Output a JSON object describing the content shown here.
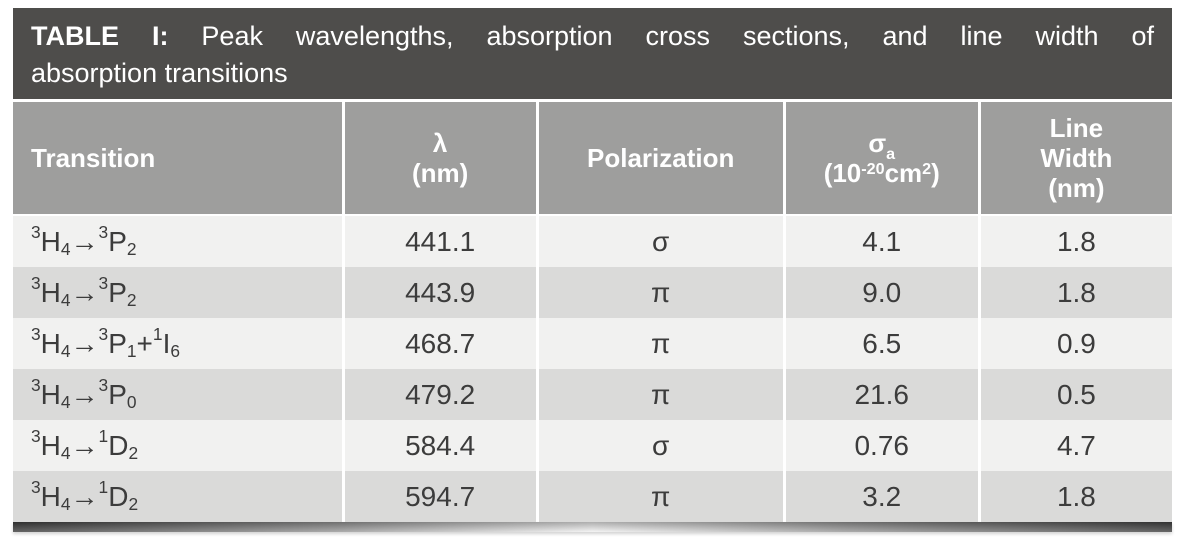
{
  "title": {
    "label": "TABLE I:",
    "rest": "Peak wavelengths, absorption cross sections, and line width of",
    "line2": "absorption transitions"
  },
  "header": {
    "columns": [
      {
        "name": "transition",
        "align": "left",
        "lines": [
          [
            [
              "t",
              "Transition"
            ]
          ]
        ]
      },
      {
        "name": "lambda-nm",
        "align": "center",
        "lines": [
          [
            [
              "t",
              "λ"
            ]
          ],
          [
            [
              "t",
              "(nm)"
            ]
          ]
        ]
      },
      {
        "name": "polarization",
        "align": "center",
        "lines": [
          [
            [
              "t",
              "Polarization"
            ]
          ]
        ]
      },
      {
        "name": "sigma-a",
        "align": "center",
        "lines": [
          [
            [
              "t",
              "σ"
            ],
            [
              "sub",
              "a"
            ]
          ],
          [
            [
              "t",
              "(10"
            ],
            [
              "sup",
              "-20"
            ],
            [
              "t",
              "cm"
            ],
            [
              "sup",
              "2"
            ],
            [
              "t",
              ")"
            ]
          ]
        ]
      },
      {
        "name": "line-width",
        "align": "center",
        "lines": [
          [
            [
              "t",
              "Line"
            ]
          ],
          [
            [
              "t",
              "Width"
            ]
          ],
          [
            [
              "t",
              "(nm)"
            ]
          ]
        ]
      }
    ]
  },
  "rows": [
    {
      "transition": [
        [
          "sup",
          "3"
        ],
        [
          "t",
          "H"
        ],
        [
          "sub",
          "4"
        ],
        [
          "t",
          "→"
        ],
        [
          "sup",
          "3"
        ],
        [
          "t",
          "P"
        ],
        [
          "sub",
          "2"
        ]
      ],
      "lambda": "441.1",
      "polarization": "σ",
      "sigma": "4.1",
      "line_width": "1.8"
    },
    {
      "transition": [
        [
          "sup",
          "3"
        ],
        [
          "t",
          "H"
        ],
        [
          "sub",
          "4"
        ],
        [
          "t",
          "→"
        ],
        [
          "sup",
          "3"
        ],
        [
          "t",
          "P"
        ],
        [
          "sub",
          "2"
        ]
      ],
      "lambda": "443.9",
      "polarization": "π",
      "sigma": "9.0",
      "line_width": "1.8"
    },
    {
      "transition": [
        [
          "sup",
          "3"
        ],
        [
          "t",
          "H"
        ],
        [
          "sub",
          "4"
        ],
        [
          "t",
          "→"
        ],
        [
          "sup",
          "3"
        ],
        [
          "t",
          "P"
        ],
        [
          "sub",
          "1"
        ],
        [
          "t",
          "+"
        ],
        [
          "sup",
          "1"
        ],
        [
          "t",
          "I"
        ],
        [
          "sub",
          "6"
        ]
      ],
      "lambda": "468.7",
      "polarization": "π",
      "sigma": "6.5",
      "line_width": "0.9"
    },
    {
      "transition": [
        [
          "sup",
          "3"
        ],
        [
          "t",
          "H"
        ],
        [
          "sub",
          "4"
        ],
        [
          "t",
          "→"
        ],
        [
          "sup",
          "3"
        ],
        [
          "t",
          "P"
        ],
        [
          "sub",
          "0"
        ]
      ],
      "lambda": "479.2",
      "polarization": "π",
      "sigma": "21.6",
      "line_width": "0.5"
    },
    {
      "transition": [
        [
          "sup",
          "3"
        ],
        [
          "t",
          "H"
        ],
        [
          "sub",
          "4"
        ],
        [
          "t",
          "→"
        ],
        [
          "sup",
          "1"
        ],
        [
          "t",
          "D"
        ],
        [
          "sub",
          "2"
        ]
      ],
      "lambda": "584.4",
      "polarization": "σ",
      "sigma": "0.76",
      "line_width": "4.7"
    },
    {
      "transition": [
        [
          "sup",
          "3"
        ],
        [
          "t",
          "H"
        ],
        [
          "sub",
          "4"
        ],
        [
          "t",
          "→"
        ],
        [
          "sup",
          "1"
        ],
        [
          "t",
          "D"
        ],
        [
          "sub",
          "2"
        ]
      ],
      "lambda": "594.7",
      "polarization": "π",
      "sigma": "3.2",
      "line_width": "1.8"
    }
  ],
  "colors": {
    "title_bar": "#4e4d4b",
    "header_bg": "#9e9e9d",
    "row_light": "#f1f1f0",
    "row_dark": "#dadad9",
    "text_dark": "#3c3c3c",
    "text_light": "#ffffff"
  },
  "chart_data": {
    "type": "table",
    "title": "TABLE I: Peak wavelengths, absorption cross sections, and line width of absorption transitions",
    "columns": [
      "Transition",
      "λ (nm)",
      "Polarization",
      "σa (10⁻²⁰cm²)",
      "Line Width (nm)"
    ],
    "rows": [
      [
        "³H₄→³P₂",
        "441.1",
        "σ",
        "4.1",
        "1.8"
      ],
      [
        "³H₄→³P₂",
        "443.9",
        "π",
        "9.0",
        "1.8"
      ],
      [
        "³H₄→³P₁+¹I₆",
        "468.7",
        "π",
        "6.5",
        "0.9"
      ],
      [
        "³H₄→³P₀",
        "479.2",
        "π",
        "21.6",
        "0.5"
      ],
      [
        "³H₄→¹D₂",
        "584.4",
        "σ",
        "0.76",
        "4.7"
      ],
      [
        "³H₄→¹D₂",
        "594.7",
        "π",
        "3.2",
        "1.8"
      ]
    ]
  }
}
